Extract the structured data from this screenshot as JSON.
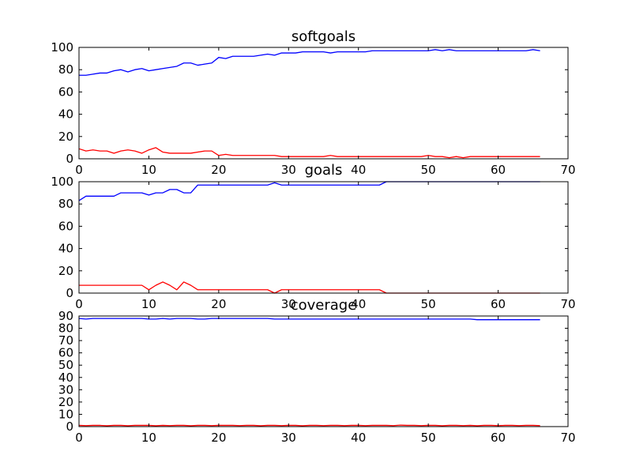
{
  "colors": {
    "background": "#ffffff",
    "axes": "#000000",
    "series_blue": "#0000ff",
    "series_red": "#ff0000"
  },
  "chart_data": [
    {
      "type": "line",
      "title": "softgoals",
      "xlabel": "",
      "ylabel": "",
      "xlim": [
        0,
        70
      ],
      "ylim": [
        0,
        100
      ],
      "xticks": [
        0,
        10,
        20,
        30,
        40,
        50,
        60,
        70
      ],
      "yticks": [
        0,
        20,
        40,
        60,
        80,
        100
      ],
      "grid": false,
      "series": [
        {
          "color": "#0000ff",
          "x": [
            0,
            1,
            2,
            3,
            4,
            5,
            6,
            7,
            8,
            9,
            10,
            11,
            12,
            13,
            14,
            15,
            16,
            17,
            18,
            19,
            20,
            21,
            22,
            23,
            24,
            25,
            26,
            27,
            28,
            29,
            30,
            31,
            32,
            33,
            34,
            35,
            36,
            37,
            38,
            39,
            40,
            41,
            42,
            43,
            44,
            45,
            46,
            47,
            48,
            49,
            50,
            51,
            52,
            53,
            54,
            55,
            56,
            57,
            58,
            59,
            60,
            61,
            62,
            63,
            64,
            65,
            66
          ],
          "y": [
            75,
            75,
            76,
            77,
            77,
            79,
            80,
            78,
            80,
            81,
            79,
            80,
            81,
            82,
            83,
            86,
            86,
            84,
            85,
            86,
            91,
            90,
            92,
            92,
            92,
            92,
            93,
            94,
            93,
            95,
            95,
            95,
            96,
            96,
            96,
            96,
            95,
            96,
            96,
            96,
            96,
            96,
            97,
            97,
            97,
            97,
            97,
            97,
            97,
            97,
            97,
            98,
            97,
            98,
            97,
            97,
            97,
            97,
            97,
            97,
            97,
            97,
            97,
            97,
            97,
            98,
            97
          ]
        },
        {
          "color": "#ff0000",
          "x": [
            0,
            1,
            2,
            3,
            4,
            5,
            6,
            7,
            8,
            9,
            10,
            11,
            12,
            13,
            14,
            15,
            16,
            17,
            18,
            19,
            20,
            21,
            22,
            23,
            24,
            25,
            26,
            27,
            28,
            29,
            30,
            31,
            32,
            33,
            34,
            35,
            36,
            37,
            38,
            39,
            40,
            41,
            42,
            43,
            44,
            45,
            46,
            47,
            48,
            49,
            50,
            51,
            52,
            53,
            54,
            55,
            56,
            57,
            58,
            59,
            60,
            61,
            62,
            63,
            64,
            65,
            66
          ],
          "y": [
            9,
            7,
            8,
            7,
            7,
            5,
            7,
            8,
            7,
            5,
            8,
            10,
            6,
            5,
            5,
            5,
            5,
            6,
            7,
            7,
            3,
            4,
            3,
            3,
            3,
            3,
            3,
            3,
            3,
            2,
            2,
            2,
            2,
            2,
            2,
            2,
            3,
            2,
            2,
            2,
            2,
            2,
            2,
            2,
            2,
            2,
            2,
            2,
            2,
            2,
            3,
            2,
            2,
            1,
            2,
            1,
            2,
            2,
            2,
            2,
            2,
            2,
            2,
            2,
            2,
            2,
            2
          ]
        }
      ]
    },
    {
      "type": "line",
      "title": "goals",
      "xlabel": "",
      "ylabel": "",
      "xlim": [
        0,
        70
      ],
      "ylim": [
        0,
        100
      ],
      "xticks": [
        0,
        10,
        20,
        30,
        40,
        50,
        60,
        70
      ],
      "yticks": [
        0,
        20,
        40,
        60,
        80,
        100
      ],
      "grid": false,
      "series": [
        {
          "color": "#0000ff",
          "x": [
            0,
            1,
            2,
            3,
            4,
            5,
            6,
            7,
            8,
            9,
            10,
            11,
            12,
            13,
            14,
            15,
            16,
            17,
            18,
            19,
            20,
            21,
            22,
            23,
            24,
            25,
            26,
            27,
            28,
            29,
            30,
            31,
            32,
            33,
            34,
            35,
            36,
            37,
            38,
            39,
            40,
            41,
            42,
            43,
            44,
            45,
            46,
            47,
            48,
            49,
            50,
            51,
            52,
            53,
            54,
            55,
            56,
            57,
            58,
            59,
            60,
            61,
            62,
            63,
            64,
            65,
            66
          ],
          "y": [
            83,
            87,
            87,
            87,
            87,
            87,
            90,
            90,
            90,
            90,
            88,
            90,
            90,
            93,
            93,
            90,
            90,
            97,
            97,
            97,
            97,
            97,
            97,
            97,
            97,
            97,
            97,
            97,
            99,
            97,
            97,
            97,
            97,
            97,
            97,
            97,
            97,
            97,
            97,
            97,
            97,
            97,
            97,
            97,
            100,
            100,
            100,
            100,
            100,
            100,
            100,
            100,
            100,
            100,
            100,
            100,
            100,
            100,
            100,
            100,
            100,
            100,
            100,
            100,
            100,
            100,
            100
          ]
        },
        {
          "color": "#ff0000",
          "x": [
            0,
            1,
            2,
            3,
            4,
            5,
            6,
            7,
            8,
            9,
            10,
            11,
            12,
            13,
            14,
            15,
            16,
            17,
            18,
            19,
            20,
            21,
            22,
            23,
            24,
            25,
            26,
            27,
            28,
            29,
            30,
            31,
            32,
            33,
            34,
            35,
            36,
            37,
            38,
            39,
            40,
            41,
            42,
            43,
            44,
            45,
            46,
            47,
            48,
            49,
            50,
            51,
            52,
            53,
            54,
            55,
            56,
            57,
            58,
            59,
            60,
            61,
            62,
            63,
            64,
            65,
            66
          ],
          "y": [
            7,
            7,
            7,
            7,
            7,
            7,
            7,
            7,
            7,
            7,
            3,
            7,
            10,
            7,
            3,
            10,
            7,
            3,
            3,
            3,
            3,
            3,
            3,
            3,
            3,
            3,
            3,
            3,
            0,
            3,
            3,
            3,
            3,
            3,
            3,
            3,
            3,
            3,
            3,
            3,
            3,
            3,
            3,
            3,
            0,
            0,
            0,
            0,
            0,
            0,
            0,
            0,
            0,
            0,
            0,
            0,
            0,
            0,
            0,
            0,
            0,
            0,
            0,
            0,
            0,
            0,
            0
          ]
        }
      ]
    },
    {
      "type": "line",
      "title": "coverage",
      "xlabel": "",
      "ylabel": "",
      "xlim": [
        0,
        70
      ],
      "ylim": [
        0,
        90
      ],
      "xticks": [
        0,
        10,
        20,
        30,
        40,
        50,
        60,
        70
      ],
      "yticks": [
        0,
        10,
        20,
        30,
        40,
        50,
        60,
        70,
        80,
        90
      ],
      "grid": false,
      "series": [
        {
          "color": "#0000ff",
          "x": [
            0,
            1,
            2,
            3,
            4,
            5,
            6,
            7,
            8,
            9,
            10,
            11,
            12,
            13,
            14,
            15,
            16,
            17,
            18,
            19,
            20,
            21,
            22,
            23,
            24,
            25,
            26,
            27,
            28,
            29,
            30,
            31,
            32,
            33,
            34,
            35,
            36,
            37,
            38,
            39,
            40,
            41,
            42,
            43,
            44,
            45,
            46,
            47,
            48,
            49,
            50,
            51,
            52,
            53,
            54,
            55,
            56,
            57,
            58,
            59,
            60,
            61,
            62,
            63,
            64,
            65,
            66
          ],
          "y": [
            88,
            87.5,
            88,
            88,
            88,
            88,
            88,
            88,
            88,
            88,
            87.5,
            87.5,
            88,
            87.5,
            88,
            88,
            88,
            87.5,
            87.5,
            88,
            88,
            88,
            88,
            88,
            88,
            88,
            88,
            88,
            87.5,
            87.5,
            87.5,
            87.5,
            87.5,
            87.5,
            87.5,
            87.5,
            87.5,
            87.5,
            87.5,
            87.5,
            87.5,
            87.5,
            87.5,
            87.5,
            87.5,
            87.5,
            87.5,
            87.5,
            87.5,
            87.5,
            87.5,
            87.5,
            87.5,
            87.5,
            87.5,
            87.5,
            87.5,
            87,
            87,
            87,
            87,
            87,
            87,
            87,
            87,
            87,
            87
          ]
        },
        {
          "color": "#ff0000",
          "x": [
            0,
            1,
            2,
            3,
            4,
            5,
            6,
            7,
            8,
            9,
            10,
            11,
            12,
            13,
            14,
            15,
            16,
            17,
            18,
            19,
            20,
            21,
            22,
            23,
            24,
            25,
            26,
            27,
            28,
            29,
            30,
            31,
            32,
            33,
            34,
            35,
            36,
            37,
            38,
            39,
            40,
            41,
            42,
            43,
            44,
            45,
            46,
            47,
            48,
            49,
            50,
            51,
            52,
            53,
            54,
            55,
            56,
            57,
            58,
            59,
            60,
            61,
            62,
            63,
            64,
            65,
            66
          ],
          "y": [
            1,
            0.8,
            1,
            1,
            0.7,
            1,
            1,
            0.7,
            1,
            1,
            1,
            0.7,
            1,
            0.8,
            1,
            1,
            0.7,
            1,
            1,
            0.8,
            1,
            1,
            1,
            0.8,
            1,
            1,
            0.7,
            1,
            1,
            0.8,
            1,
            1,
            0.7,
            1,
            1,
            0.8,
            1,
            1,
            0.8,
            1,
            1,
            0.8,
            1,
            1,
            1,
            0.8,
            1.2,
            1,
            1,
            0.8,
            1,
            1,
            0.7,
            1,
            1,
            0.8,
            1,
            0.7,
            1,
            1,
            0.8,
            1,
            1,
            0.8,
            1,
            1,
            0.8
          ]
        }
      ]
    }
  ]
}
